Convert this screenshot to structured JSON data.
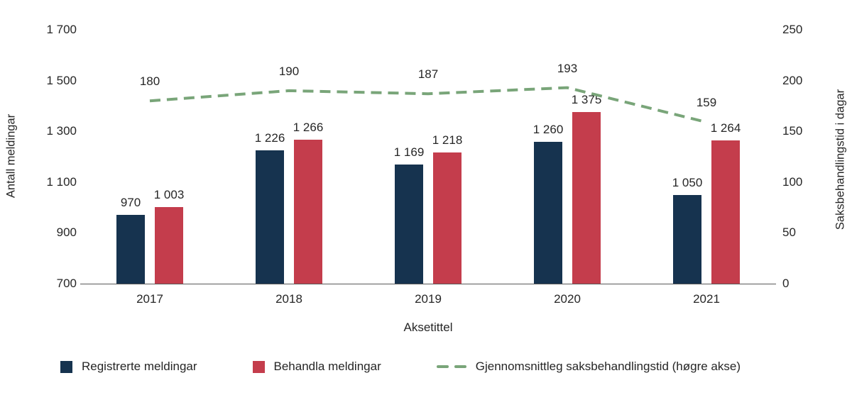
{
  "chart_data": {
    "type": "bar",
    "subtype": "grouped-bars-with-line",
    "categories": [
      "2017",
      "2018",
      "2019",
      "2020",
      "2021"
    ],
    "series": [
      {
        "name": "Registrerte meldingar",
        "type": "bar",
        "axis": "left",
        "color": "#16334f",
        "values": [
          970,
          1226,
          1169,
          1260,
          1050
        ],
        "labels": [
          "970",
          "1 226",
          "1 169",
          "1 260",
          "1 050"
        ]
      },
      {
        "name": "Behandla meldingar",
        "type": "bar",
        "axis": "left",
        "color": "#c43d4c",
        "values": [
          1003,
          1266,
          1218,
          1375,
          1264
        ],
        "labels": [
          "1 003",
          "1 266",
          "1 218",
          "1 375",
          "1 264"
        ]
      },
      {
        "name": "Gjennomsnittleg saksbehandlingstid (høgre akse)",
        "type": "line",
        "axis": "right",
        "dashed": true,
        "color": "#79a579",
        "values": [
          180,
          190,
          187,
          193,
          159
        ],
        "labels": [
          "180",
          "190",
          "187",
          "193",
          "159"
        ]
      }
    ],
    "left_axis": {
      "label": "Antall meldingar",
      "min": 700,
      "max": 1700,
      "step": 200,
      "ticks": [
        "700",
        "900",
        "1 100",
        "1 300",
        "1 500",
        "1 700"
      ]
    },
    "right_axis": {
      "label": "Saksbehandlingstid i dagar",
      "min": 0,
      "max": 250,
      "step": 50,
      "ticks": [
        "0",
        "50",
        "100",
        "150",
        "200",
        "250"
      ]
    },
    "xlabel": "Aksetittel",
    "legend_position": "bottom",
    "grid": false,
    "colors": {
      "background": "#ffffff",
      "text": "#262626",
      "axis_line": "#595959"
    }
  }
}
